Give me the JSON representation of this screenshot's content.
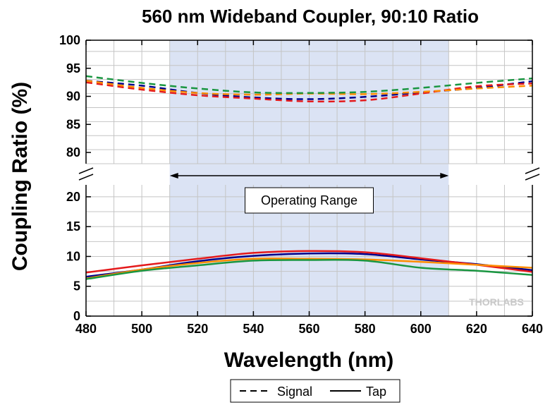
{
  "chart_data": {
    "type": "line",
    "title": "560 nm Wideband Coupler, 90:10 Ratio",
    "xlabel": "Wavelength (nm)",
    "ylabel": "Coupling Ratio (%)",
    "xlim": [
      480,
      640
    ],
    "x_ticks": [
      480,
      500,
      520,
      540,
      560,
      580,
      600,
      620,
      640
    ],
    "ylim_lower": [
      0,
      22
    ],
    "ylim_upper": [
      78,
      100
    ],
    "y_ticks_lower": [
      0,
      5,
      10,
      15,
      20
    ],
    "y_ticks_upper": [
      80,
      85,
      90,
      95,
      100
    ],
    "axis_break": true,
    "grid": true,
    "operating_range": [
      510,
      610
    ],
    "operating_range_label": "Operating Range",
    "legend": {
      "position": "bottom-center",
      "entries": [
        {
          "label": "Signal",
          "style": "dashed"
        },
        {
          "label": "Tap",
          "style": "solid"
        }
      ]
    },
    "x": [
      480,
      500,
      520,
      540,
      560,
      580,
      600,
      620,
      640
    ],
    "series": [
      {
        "group": "Signal",
        "color": "#00008b",
        "style": "dashed",
        "values": [
          92.8,
          91.9,
          90.6,
          89.8,
          89.5,
          89.9,
          90.7,
          91.5,
          92.7
        ]
      },
      {
        "group": "Signal",
        "color": "#e41a1c",
        "style": "dashed",
        "values": [
          92.5,
          91.2,
          90.2,
          89.6,
          89.1,
          89.3,
          90.5,
          91.8,
          92.3
        ]
      },
      {
        "group": "Signal",
        "color": "#ff8c00",
        "style": "dashed",
        "values": [
          92.8,
          91.5,
          90.6,
          90.3,
          90.5,
          90.4,
          90.8,
          91.4,
          91.9
        ]
      },
      {
        "group": "Signal",
        "color": "#1a9641",
        "style": "dashed",
        "values": [
          93.6,
          92.4,
          91.4,
          90.7,
          90.6,
          90.8,
          91.5,
          92.4,
          93.2
        ]
      },
      {
        "group": "Tap",
        "color": "#00008b",
        "style": "solid",
        "values": [
          6.6,
          7.8,
          9.2,
          10.1,
          10.5,
          10.4,
          9.5,
          8.7,
          7.7
        ]
      },
      {
        "group": "Tap",
        "color": "#e41a1c",
        "style": "solid",
        "values": [
          7.3,
          8.5,
          9.6,
          10.6,
          10.9,
          10.7,
          9.7,
          8.6,
          7.4
        ]
      },
      {
        "group": "Tap",
        "color": "#ff8c00",
        "style": "solid",
        "values": [
          6.3,
          7.8,
          8.9,
          9.6,
          9.6,
          9.5,
          9.1,
          8.6,
          8.1
        ]
      },
      {
        "group": "Tap",
        "color": "#1a9641",
        "style": "solid",
        "values": [
          6.2,
          7.6,
          8.5,
          9.3,
          9.4,
          9.3,
          8.1,
          7.6,
          6.9
        ]
      }
    ],
    "watermark": "THORLABS"
  }
}
